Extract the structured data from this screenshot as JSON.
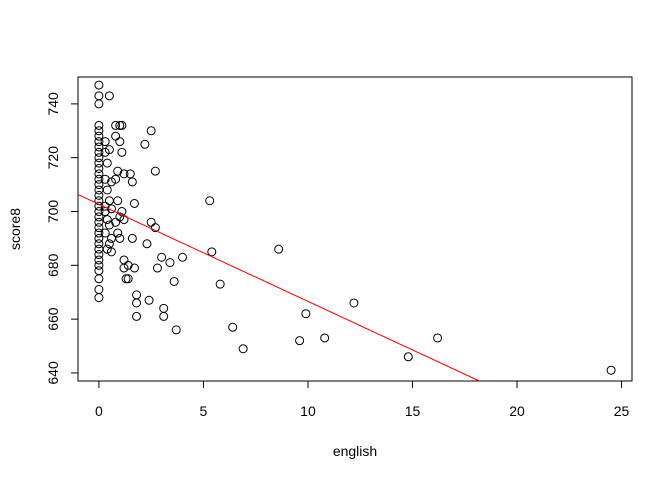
{
  "chart_data": {
    "type": "scatter",
    "xlabel": "english",
    "ylabel": "score8",
    "xlim": [
      -1,
      25.5
    ],
    "ylim": [
      637,
      750
    ],
    "x_ticks": [
      0,
      5,
      10,
      15,
      20,
      25
    ],
    "y_ticks": [
      640,
      660,
      680,
      700,
      720,
      740
    ],
    "grid": false,
    "colors": {
      "points": "#000000",
      "fit_line": "#ff0000",
      "frame": "#000000"
    },
    "fit_line": {
      "x": [
        -1,
        18.2
      ],
      "y": [
        706.3,
        637
      ]
    },
    "points": [
      [
        0,
        747
      ],
      [
        0,
        743
      ],
      [
        0,
        740
      ],
      [
        0,
        732
      ],
      [
        0,
        730
      ],
      [
        0,
        728
      ],
      [
        0,
        726
      ],
      [
        0,
        724
      ],
      [
        0,
        722
      ],
      [
        0,
        720
      ],
      [
        0,
        718
      ],
      [
        0,
        716
      ],
      [
        0,
        714
      ],
      [
        0,
        712
      ],
      [
        0,
        710
      ],
      [
        0,
        708
      ],
      [
        0,
        706
      ],
      [
        0,
        704
      ],
      [
        0,
        702
      ],
      [
        0,
        700
      ],
      [
        0,
        698
      ],
      [
        0,
        696
      ],
      [
        0,
        694
      ],
      [
        0,
        692
      ],
      [
        0,
        690
      ],
      [
        0,
        688
      ],
      [
        0,
        686
      ],
      [
        0,
        684
      ],
      [
        0,
        682
      ],
      [
        0,
        680
      ],
      [
        0,
        678
      ],
      [
        0,
        675
      ],
      [
        0,
        671
      ],
      [
        0,
        668
      ],
      [
        0.3,
        726
      ],
      [
        0.3,
        722
      ],
      [
        0.4,
        718
      ],
      [
        0.3,
        712
      ],
      [
        0.4,
        708
      ],
      [
        0.3,
        702
      ],
      [
        0.3,
        700
      ],
      [
        0.4,
        697
      ],
      [
        0.3,
        692
      ],
      [
        0.5,
        688
      ],
      [
        0.4,
        686
      ],
      [
        0.5,
        743
      ],
      [
        0.5,
        723
      ],
      [
        0.6,
        711
      ],
      [
        0.5,
        704
      ],
      [
        0.6,
        701
      ],
      [
        0.5,
        695
      ],
      [
        0.6,
        690
      ],
      [
        0.6,
        685
      ],
      [
        0.8,
        732
      ],
      [
        0.8,
        728
      ],
      [
        0.8,
        712
      ],
      [
        0.9,
        704
      ],
      [
        0.8,
        696
      ],
      [
        0.9,
        692
      ],
      [
        1.0,
        732
      ],
      [
        1.0,
        726
      ],
      [
        0.9,
        715
      ],
      [
        1.0,
        698
      ],
      [
        1.0,
        690
      ],
      [
        1.1,
        732
      ],
      [
        1.1,
        722
      ],
      [
        1.2,
        714
      ],
      [
        1.1,
        700
      ],
      [
        1.2,
        697
      ],
      [
        1.2,
        682
      ],
      [
        1.2,
        679
      ],
      [
        1.3,
        675
      ],
      [
        1.4,
        675
      ],
      [
        1.4,
        680
      ],
      [
        1.5,
        714
      ],
      [
        1.6,
        711
      ],
      [
        1.6,
        690
      ],
      [
        1.7,
        703
      ],
      [
        1.7,
        679
      ],
      [
        1.8,
        669
      ],
      [
        1.8,
        666
      ],
      [
        1.8,
        661
      ],
      [
        2.2,
        725
      ],
      [
        2.3,
        688
      ],
      [
        2.4,
        667
      ],
      [
        2.5,
        730
      ],
      [
        2.5,
        696
      ],
      [
        2.7,
        715
      ],
      [
        2.7,
        694
      ],
      [
        2.8,
        679
      ],
      [
        3.0,
        683
      ],
      [
        3.1,
        664
      ],
      [
        3.1,
        661
      ],
      [
        3.4,
        681
      ],
      [
        3.6,
        674
      ],
      [
        3.7,
        656
      ],
      [
        4.0,
        683
      ],
      [
        5.3,
        704
      ],
      [
        5.4,
        685
      ],
      [
        5.8,
        673
      ],
      [
        6.4,
        657
      ],
      [
        6.9,
        649
      ],
      [
        8.6,
        686
      ],
      [
        9.6,
        652
      ],
      [
        9.9,
        662
      ],
      [
        10.8,
        653
      ],
      [
        12.2,
        666
      ],
      [
        14.8,
        646
      ],
      [
        16.2,
        653
      ],
      [
        24.5,
        641
      ]
    ]
  }
}
